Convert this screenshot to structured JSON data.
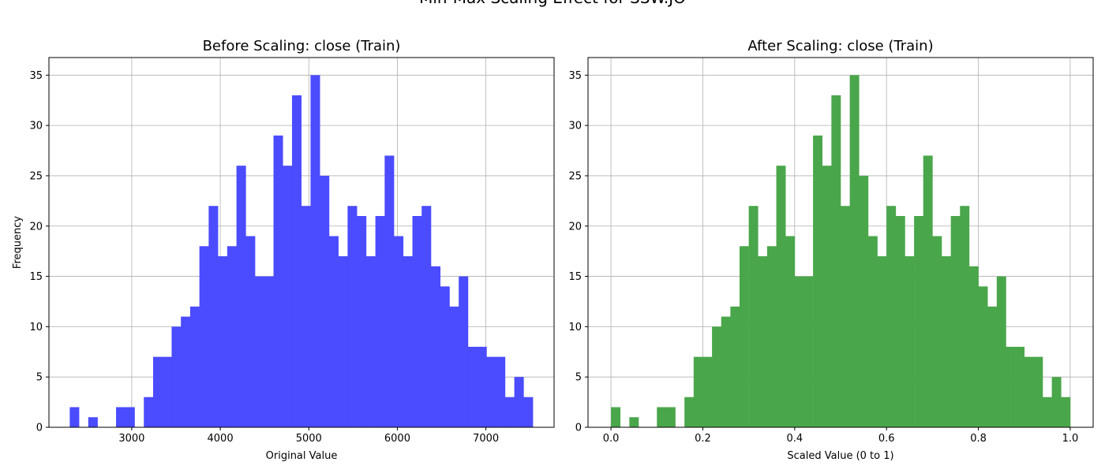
{
  "figure": {
    "title": "Min-Max Scaling Effect for SSW.JO"
  },
  "chart_data": [
    {
      "type": "bar",
      "title": "Before Scaling: close (Train)",
      "xlabel": "Original Value",
      "ylabel": "Frequency",
      "bar_color": "#4b4bff",
      "grid": true,
      "xlim": [
        2065,
        7770
      ],
      "ylim": [
        0,
        36.75
      ],
      "x_ticks": [
        3000,
        4000,
        5000,
        6000,
        7000
      ],
      "y_ticks": [
        0,
        5,
        10,
        15,
        20,
        25,
        30,
        35
      ],
      "bin_start": 2300,
      "bin_width": 104.6,
      "values": [
        2,
        0,
        1,
        0,
        0,
        2,
        2,
        0,
        3,
        7,
        7,
        10,
        11,
        12,
        18,
        22,
        17,
        18,
        26,
        19,
        15,
        15,
        29,
        26,
        33,
        22,
        35,
        25,
        19,
        17,
        22,
        21,
        17,
        21,
        27,
        19,
        17,
        21,
        22,
        16,
        14,
        12,
        15,
        8,
        8,
        7,
        7,
        3,
        5,
        3
      ]
    },
    {
      "type": "bar",
      "title": "After Scaling: close (Train)",
      "xlabel": "Scaled Value (0 to 1)",
      "ylabel": "",
      "bar_color": "#4aa64a",
      "grid": true,
      "xlim": [
        -0.05,
        1.05
      ],
      "ylim": [
        0,
        36.75
      ],
      "x_ticks": [
        0.0,
        0.2,
        0.4,
        0.6,
        0.8,
        1.0
      ],
      "y_ticks": [
        0,
        5,
        10,
        15,
        20,
        25,
        30,
        35
      ],
      "bin_start": 0.0,
      "bin_width": 0.02,
      "values": [
        2,
        0,
        1,
        0,
        0,
        2,
        2,
        0,
        3,
        7,
        7,
        10,
        11,
        12,
        18,
        22,
        17,
        18,
        26,
        19,
        15,
        15,
        29,
        26,
        33,
        22,
        35,
        25,
        19,
        17,
        22,
        21,
        17,
        21,
        27,
        19,
        17,
        21,
        22,
        16,
        14,
        12,
        15,
        8,
        8,
        7,
        7,
        3,
        5,
        3
      ]
    }
  ]
}
